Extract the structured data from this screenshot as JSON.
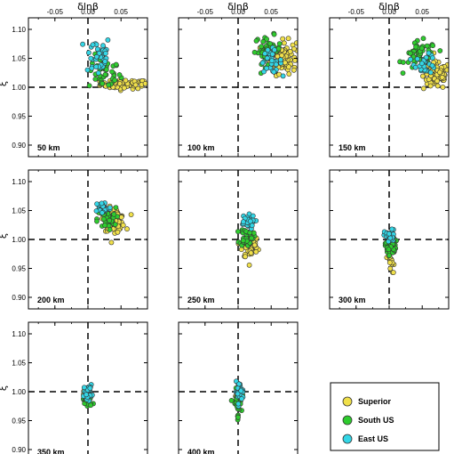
{
  "chart_data": {
    "type": "scatter",
    "xlabel": "δlnβ",
    "ylabel": "ξ",
    "xlim": [
      -0.09,
      0.09
    ],
    "ylim": [
      0.88,
      1.12
    ],
    "x_ticks": [
      "-0.05",
      "0.00",
      "0.05"
    ],
    "x_tick_values": [
      -0.05,
      0.0,
      0.05
    ],
    "y_ticks": [
      "1.10",
      "1.05",
      "1.00",
      "0.95",
      "0.90"
    ],
    "y_tick_values": [
      1.1,
      1.05,
      1.0,
      0.95,
      0.9
    ],
    "reference_lines": {
      "x": 0.0,
      "y": 1.0
    },
    "grid": false,
    "legend_position": "bottom-right",
    "legend": [
      {
        "name": "Superior",
        "color": "#f0e04a"
      },
      {
        "name": "South US",
        "color": "#2ecc2e"
      },
      {
        "name": "East US",
        "color": "#33d6e6"
      }
    ],
    "panels": [
      {
        "label": "50 km",
        "clusters": [
          {
            "series": "Superior",
            "cx": 0.055,
            "cy": 1.005,
            "sx": 0.018,
            "sy": 0.004,
            "n": 70
          },
          {
            "series": "South US",
            "cx": 0.025,
            "cy": 1.025,
            "sx": 0.012,
            "sy": 0.015,
            "n": 45
          },
          {
            "series": "East US",
            "cx": 0.015,
            "cy": 1.055,
            "sx": 0.01,
            "sy": 0.018,
            "n": 40
          }
        ]
      },
      {
        "label": "100 km",
        "clusters": [
          {
            "series": "Superior",
            "cx": 0.068,
            "cy": 1.052,
            "sx": 0.01,
            "sy": 0.014,
            "n": 90
          },
          {
            "series": "South US",
            "cx": 0.045,
            "cy": 1.065,
            "sx": 0.01,
            "sy": 0.012,
            "n": 45
          },
          {
            "series": "East US",
            "cx": 0.05,
            "cy": 1.045,
            "sx": 0.008,
            "sy": 0.01,
            "n": 30
          }
        ]
      },
      {
        "label": "150 km",
        "clusters": [
          {
            "series": "Superior",
            "cx": 0.072,
            "cy": 1.02,
            "sx": 0.01,
            "sy": 0.012,
            "n": 90
          },
          {
            "series": "South US",
            "cx": 0.048,
            "cy": 1.055,
            "sx": 0.012,
            "sy": 0.012,
            "n": 55
          },
          {
            "series": "East US",
            "cx": 0.055,
            "cy": 1.04,
            "sx": 0.008,
            "sy": 0.008,
            "n": 30
          }
        ]
      },
      {
        "label": "200 km",
        "clusters": [
          {
            "series": "Superior",
            "cx": 0.04,
            "cy": 1.035,
            "sx": 0.008,
            "sy": 0.01,
            "n": 70
          },
          {
            "series": "South US",
            "cx": 0.028,
            "cy": 1.035,
            "sx": 0.007,
            "sy": 0.01,
            "n": 40
          },
          {
            "series": "East US",
            "cx": 0.023,
            "cy": 1.055,
            "sx": 0.006,
            "sy": 0.006,
            "n": 35
          }
        ]
      },
      {
        "label": "250 km",
        "clusters": [
          {
            "series": "Superior",
            "cx": 0.018,
            "cy": 0.99,
            "sx": 0.006,
            "sy": 0.012,
            "n": 55
          },
          {
            "series": "South US",
            "cx": 0.013,
            "cy": 1.005,
            "sx": 0.005,
            "sy": 0.008,
            "n": 40
          },
          {
            "series": "East US",
            "cx": 0.013,
            "cy": 1.03,
            "sx": 0.006,
            "sy": 0.006,
            "n": 40
          }
        ]
      },
      {
        "label": "300 km",
        "clusters": [
          {
            "series": "Superior",
            "cx": 0.002,
            "cy": 0.965,
            "sx": 0.003,
            "sy": 0.012,
            "n": 20
          },
          {
            "series": "South US",
            "cx": 0.002,
            "cy": 0.99,
            "sx": 0.004,
            "sy": 0.008,
            "n": 35
          },
          {
            "series": "East US",
            "cx": 0.001,
            "cy": 1.005,
            "sx": 0.004,
            "sy": 0.006,
            "n": 35
          }
        ]
      },
      {
        "label": "350 km",
        "clusters": [
          {
            "series": "Superior",
            "cx": 0.0,
            "cy": 0.995,
            "sx": 0.003,
            "sy": 0.004,
            "n": 15
          },
          {
            "series": "South US",
            "cx": -0.001,
            "cy": 0.985,
            "sx": 0.004,
            "sy": 0.006,
            "n": 35
          },
          {
            "series": "East US",
            "cx": 0.0,
            "cy": 1.0,
            "sx": 0.003,
            "sy": 0.006,
            "n": 30
          }
        ]
      },
      {
        "label": "400 km",
        "clusters": [
          {
            "series": "Superior",
            "cx": 0.0,
            "cy": 0.99,
            "sx": 0.002,
            "sy": 0.005,
            "n": 15
          },
          {
            "series": "South US",
            "cx": -0.001,
            "cy": 0.98,
            "sx": 0.003,
            "sy": 0.012,
            "n": 40
          },
          {
            "series": "East US",
            "cx": 0.002,
            "cy": 1.0,
            "sx": 0.003,
            "sy": 0.008,
            "n": 30
          }
        ]
      }
    ]
  }
}
